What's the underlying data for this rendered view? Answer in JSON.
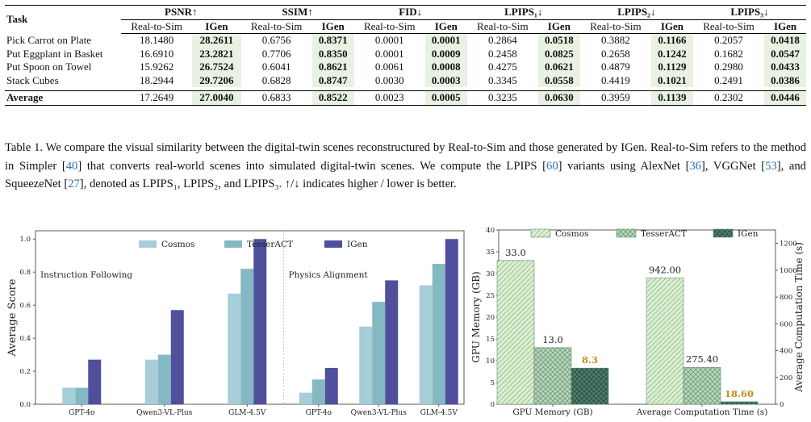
{
  "table": {
    "task_header": "Task",
    "metrics": [
      "PSNR↑",
      "SSIM↑",
      "FID↓",
      "LPIPS₁↓",
      "LPIPS₂↓",
      "LPIPS₃↓"
    ],
    "subheaders": [
      "Real-to-Sim",
      "IGen"
    ],
    "rows": [
      {
        "task": "Pick Carrot on Plate",
        "values": [
          "18.1480",
          "28.2611",
          "0.6756",
          "0.8371",
          "0.0001",
          "0.0001",
          "0.2864",
          "0.0518",
          "0.3882",
          "0.1166",
          "0.2057",
          "0.0418"
        ]
      },
      {
        "task": "Put Eggplant in Basket",
        "values": [
          "16.6910",
          "23.2821",
          "0.7706",
          "0.8350",
          "0.0001",
          "0.0009",
          "0.2458",
          "0.0825",
          "0.2658",
          "0.1242",
          "0.1682",
          "0.0547"
        ]
      },
      {
        "task": "Put Spoon on Towel",
        "values": [
          "15.9262",
          "26.7524",
          "0.6041",
          "0.8621",
          "0.0061",
          "0.0008",
          "0.4275",
          "0.0621",
          "0.4879",
          "0.1129",
          "0.2980",
          "0.0433"
        ]
      },
      {
        "task": "Stack Cubes",
        "values": [
          "18.2944",
          "29.7206",
          "0.6828",
          "0.8747",
          "0.0030",
          "0.0003",
          "0.3345",
          "0.0558",
          "0.4419",
          "0.1021",
          "0.2491",
          "0.0386"
        ]
      }
    ],
    "average": {
      "task": "Average",
      "values": [
        "17.2649",
        "27.0040",
        "0.6833",
        "0.8522",
        "0.0023",
        "0.0005",
        "0.3235",
        "0.0630",
        "0.3959",
        "0.1139",
        "0.2302",
        "0.0446"
      ]
    },
    "highlight_color": "#e8f2e3"
  },
  "caption": {
    "p1": "Table 1. We compare the visual similarity between the digital-twin scenes reconstructured by Real-to-Sim and those generated by IGen. Real-to-Sim refers to the method in Simpler [",
    "c1": "40",
    "p2": "] that converts real-world scenes into simulated digital-twin scenes. We compute the LPIPS [",
    "c2": "60",
    "p3": "] variants using AlexNet [",
    "c3": "36",
    "p4": "], VGGNet [",
    "c4": "53",
    "p5": "], and SqueezeNet [",
    "c5": "27",
    "p6": "], denoted as LPIPS₁, LPIPS₂, and LPIPS₃. ↑/↓ indicates higher / lower is better."
  },
  "chart_data": [
    {
      "type": "bar",
      "ylabel": "Average Score",
      "ylim": [
        0,
        1.05
      ],
      "yticks": [
        "0.0",
        "0.2",
        "0.4",
        "0.6",
        "0.8",
        "1.0"
      ],
      "legend": "top-center",
      "panels": [
        {
          "title": "Instruction Following",
          "categories": [
            "GPT-4o",
            "Qwen3-VL-Plus",
            "GLM-4.5V"
          ],
          "series": [
            {
              "name": "Cosmos",
              "color": "#a6cdd8",
              "values": [
                0.1,
                0.27,
                0.67
              ]
            },
            {
              "name": "TesserACT",
              "color": "#84b9c4",
              "values": [
                0.1,
                0.3,
                0.82
              ]
            },
            {
              "name": "IGen",
              "color": "#4f4f9c",
              "values": [
                0.27,
                0.57,
                1.0
              ]
            }
          ]
        },
        {
          "title": "Physics Alignment",
          "categories": [
            "GPT-4o",
            "Qwen3-VL-Plus",
            "GLM-4.5V"
          ],
          "series": [
            {
              "name": "Cosmos",
              "color": "#a6cdd8",
              "values": [
                0.07,
                0.47,
                0.72
              ]
            },
            {
              "name": "TesserACT",
              "color": "#84b9c4",
              "values": [
                0.15,
                0.62,
                0.85
              ]
            },
            {
              "name": "IGen",
              "color": "#4f4f9c",
              "values": [
                0.22,
                0.75,
                1.0
              ]
            }
          ]
        }
      ]
    },
    {
      "type": "bar",
      "categories": [
        "GPU Memory (GB)",
        "Average Computation Time (s)"
      ],
      "ylabel_left": "GPU Memory (GB)",
      "ylabel_right": "Average Computation Time (s)",
      "ylim_left": [
        0,
        40
      ],
      "ylim_right": [
        0,
        1300
      ],
      "yticks_left": [
        "0",
        "5",
        "10",
        "15",
        "20",
        "25",
        "30",
        "35",
        "40"
      ],
      "yticks_right": [
        "0",
        "200",
        "400",
        "600",
        "800",
        "1000",
        "1200"
      ],
      "legend": "top-center",
      "highlight_label_color": "#c58a1e",
      "series": [
        {
          "name": "Cosmos",
          "color": "#dcefd2",
          "values": [
            33.0,
            942.0
          ],
          "labels": [
            "33.0",
            "942.00"
          ]
        },
        {
          "name": "TesserACT",
          "color": "#b9d6bd",
          "values": [
            13.0,
            275.4
          ],
          "labels": [
            "13.0",
            "275.40"
          ]
        },
        {
          "name": "IGen",
          "color": "#2f5a4c",
          "values": [
            8.3,
            18.6
          ],
          "labels": [
            "8.3",
            "18.60"
          ]
        }
      ]
    }
  ]
}
